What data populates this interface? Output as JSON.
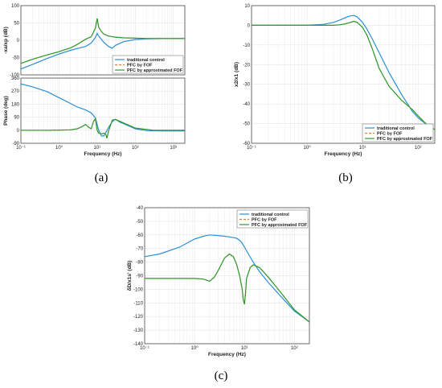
{
  "colors": {
    "traditional": "#2b8fd8",
    "fof": "#d9803a",
    "approx": "#2e9a2e"
  },
  "legend": [
    "traditional control",
    "PFC by FOF",
    "PFC by approximated FOF"
  ],
  "captions": {
    "a": "(a)",
    "b": "(b)",
    "c": "(c)"
  },
  "chart_data": [
    {
      "id": "a-magnitude",
      "type": "line",
      "xscale": "log",
      "xlim": [
        0.1,
        2000
      ],
      "ylim": [
        -100,
        100
      ],
      "yticks": [
        "100",
        "50",
        "0",
        "-50",
        "-100"
      ],
      "ylabel": "-xa/xp (dB)",
      "xlabel": "",
      "legend_loc": "bottom-right",
      "series": [
        {
          "name": "traditional control",
          "key": "traditional",
          "style": "solid",
          "x": [
            0.1,
            0.2,
            0.5,
            1,
            2,
            3,
            5,
            7,
            9,
            10,
            11,
            13,
            15,
            20,
            25,
            30,
            50,
            100,
            200,
            500,
            1000,
            2000
          ],
          "y": [
            -83,
            -70,
            -52,
            -40,
            -29,
            -24,
            -18,
            -8,
            8,
            20,
            12,
            2,
            -6,
            -18,
            -23,
            -15,
            -4,
            2,
            4,
            5,
            5,
            5
          ]
        },
        {
          "name": "PFC by FOF",
          "key": "fof",
          "style": "dashed",
          "x": [
            0.1,
            0.2,
            0.5,
            1,
            2,
            3,
            5,
            7,
            9,
            10,
            11,
            13,
            15,
            20,
            30,
            50,
            100,
            200,
            500,
            1000,
            2000
          ],
          "y": [
            -67,
            -55,
            -42,
            -33,
            -22,
            -12,
            3,
            10,
            35,
            63,
            38,
            25,
            18,
            12,
            9,
            7,
            6,
            5,
            5,
            5,
            5
          ]
        },
        {
          "name": "PFC by approximated FOF",
          "key": "approx",
          "style": "solid",
          "x": [
            0.1,
            0.2,
            0.5,
            1,
            2,
            3,
            5,
            7,
            9,
            10,
            11,
            13,
            15,
            20,
            30,
            50,
            100,
            200,
            500,
            1000,
            2000
          ],
          "y": [
            -67,
            -55,
            -42,
            -33,
            -22,
            -12,
            3,
            10,
            35,
            63,
            38,
            25,
            18,
            12,
            9,
            7,
            6,
            5,
            5,
            5,
            5
          ]
        }
      ]
    },
    {
      "id": "a-phase",
      "type": "line",
      "xscale": "log",
      "xlim": [
        0.1,
        2000
      ],
      "ylim": [
        -90,
        360
      ],
      "yticks": [
        "360",
        "270",
        "180",
        "90",
        "0",
        "-90"
      ],
      "xticks": [
        "10⁻¹",
        "10⁰",
        "10¹",
        "10²",
        "10³"
      ],
      "ylabel": "Phase (deg)",
      "xlabel": "Frequency  (Hz)",
      "series": [
        {
          "name": "traditional control",
          "key": "traditional",
          "style": "solid",
          "x": [
            0.1,
            0.2,
            0.5,
            1,
            2,
            3,
            5,
            7,
            9,
            10,
            11,
            13,
            15,
            20,
            25,
            30,
            40,
            50,
            100,
            200,
            500,
            1000,
            2000
          ],
          "y": [
            320,
            300,
            265,
            225,
            185,
            160,
            140,
            120,
            85,
            40,
            0,
            -40,
            -40,
            20,
            60,
            75,
            55,
            45,
            10,
            -3,
            -5,
            -5,
            -5
          ]
        },
        {
          "name": "PFC by FOF",
          "key": "fof",
          "style": "dashed",
          "x": [
            0.1,
            0.5,
            1,
            2,
            3,
            4,
            5,
            6,
            7,
            8,
            9,
            10,
            11,
            13,
            15,
            17,
            18,
            20,
            25,
            30,
            50,
            100,
            300,
            1000,
            2000
          ],
          "y": [
            0,
            0,
            1,
            3,
            10,
            25,
            40,
            20,
            10,
            60,
            80,
            0,
            -20,
            -25,
            -20,
            -30,
            -55,
            -5,
            70,
            75,
            50,
            15,
            0,
            0,
            0
          ]
        },
        {
          "name": "PFC by approximated FOF",
          "key": "approx",
          "style": "solid",
          "x": [
            0.1,
            0.5,
            1,
            2,
            3,
            4,
            5,
            6,
            7,
            8,
            9,
            10,
            11,
            13,
            15,
            17,
            18,
            20,
            25,
            30,
            50,
            100,
            300,
            1000,
            2000
          ],
          "y": [
            0,
            0,
            1,
            3,
            10,
            25,
            40,
            20,
            10,
            60,
            80,
            0,
            -20,
            -25,
            -20,
            -30,
            -55,
            -5,
            70,
            75,
            50,
            15,
            0,
            0,
            0
          ]
        }
      ]
    },
    {
      "id": "b",
      "type": "line",
      "xscale": "log",
      "xlim": [
        0.1,
        200
      ],
      "ylim": [
        -60,
        10
      ],
      "yticks": [
        "10",
        "0",
        "-10",
        "-20",
        "-30",
        "-40",
        "-50",
        "-60"
      ],
      "xticks": [
        "10⁻¹",
        "10⁰",
        "10¹",
        "10²"
      ],
      "ylabel": "x2/x1 (dB)",
      "xlabel": "Frequency  (Hz)",
      "legend_loc": "bottom-right",
      "series": [
        {
          "name": "traditional control",
          "key": "traditional",
          "style": "solid",
          "x": [
            0.1,
            1,
            2,
            3,
            4,
            5,
            6,
            7,
            8,
            10,
            12,
            15,
            20,
            30,
            50,
            80,
            100,
            150,
            200
          ],
          "y": [
            0,
            0,
            0.5,
            1.5,
            2.8,
            4,
            4.8,
            5,
            4.3,
            1.5,
            -2,
            -7,
            -14,
            -24,
            -35,
            -44,
            -47,
            -51,
            -53
          ]
        },
        {
          "name": "PFC by FOF",
          "key": "fof",
          "style": "dashed",
          "x": [
            0.1,
            1,
            3,
            4,
            5,
            6,
            7,
            8,
            10,
            12,
            15,
            20,
            30,
            50,
            80,
            100,
            150,
            200
          ],
          "y": [
            0,
            0,
            0,
            0.3,
            0.8,
            1.5,
            2,
            1.5,
            -1,
            -5,
            -12,
            -22,
            -31,
            -38,
            -43,
            -46,
            -51,
            -53
          ]
        },
        {
          "name": "PFC by approximated FOF",
          "key": "approx",
          "style": "solid",
          "x": [
            0.1,
            1,
            3,
            4,
            5,
            6,
            7,
            8,
            10,
            12,
            15,
            20,
            30,
            50,
            80,
            100,
            150,
            200
          ],
          "y": [
            0,
            0,
            0,
            0.3,
            0.8,
            1.5,
            2,
            1.5,
            -1,
            -5,
            -12,
            -22,
            -31,
            -38,
            -43,
            -46,
            -51,
            -53
          ]
        }
      ]
    },
    {
      "id": "c",
      "type": "line",
      "xscale": "log",
      "xlim": [
        0.1,
        200
      ],
      "ylim": [
        -140,
        -40
      ],
      "yticks": [
        "-40",
        "-50",
        "-60",
        "-70",
        "-80",
        "-90",
        "-100",
        "-110",
        "-120",
        "-130",
        "-140"
      ],
      "xticks": [
        "10⁻¹",
        "10⁰",
        "10¹",
        "10²"
      ],
      "ylabel": "δD/x1s' (dB)",
      "xlabel": "Frequency  (Hz)",
      "legend_loc": "top-right",
      "series": [
        {
          "name": "traditional control",
          "key": "traditional",
          "style": "solid",
          "x": [
            0.1,
            0.2,
            0.5,
            1,
            1.5,
            2,
            3,
            4,
            5,
            6,
            7,
            8,
            9,
            10,
            12,
            15,
            20,
            30,
            50,
            100,
            200
          ],
          "y": [
            -76,
            -74,
            -69,
            -63,
            -61,
            -60,
            -60.5,
            -61,
            -61.5,
            -62,
            -62.5,
            -64,
            -66,
            -69,
            -74,
            -80,
            -87,
            -95,
            -104,
            -116,
            -124
          ]
        },
        {
          "name": "PFC by FOF",
          "key": "fof",
          "style": "dashed",
          "x": [
            0.1,
            0.5,
            1,
            1.5,
            2,
            2.5,
            3,
            4,
            5,
            6,
            7,
            8,
            9,
            9.5,
            10,
            10.5,
            11,
            13,
            15,
            20,
            30,
            50,
            100,
            200
          ],
          "y": [
            -92,
            -92,
            -92,
            -92.5,
            -94,
            -91,
            -86,
            -77,
            -74,
            -76,
            -82,
            -90,
            -100,
            -108,
            -111,
            -103,
            -92,
            -84,
            -82,
            -84,
            -91,
            -101,
            -115,
            -124
          ]
        },
        {
          "name": "PFC by approximated FOF",
          "key": "approx",
          "style": "solid",
          "x": [
            0.1,
            0.5,
            1,
            1.5,
            2,
            2.5,
            3,
            4,
            5,
            6,
            7,
            8,
            9,
            9.5,
            10,
            10.5,
            11,
            13,
            15,
            20,
            30,
            50,
            100,
            200
          ],
          "y": [
            -92,
            -92,
            -92,
            -92.5,
            -94,
            -91,
            -86,
            -77,
            -74,
            -76,
            -82,
            -90,
            -100,
            -108,
            -111,
            -103,
            -92,
            -84,
            -82,
            -84,
            -91,
            -101,
            -115,
            -124
          ]
        }
      ]
    }
  ]
}
